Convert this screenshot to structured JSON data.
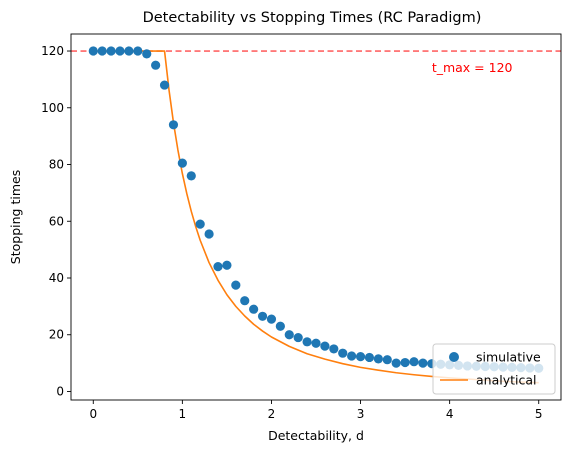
{
  "chart_data": {
    "type": "scatter",
    "title": "Detectability vs Stopping Times (RC Paradigm)",
    "xlabel": "Detectability, d",
    "ylabel": "Stopping times",
    "xlim": [
      -0.25,
      5.25
    ],
    "ylim": [
      -3,
      126
    ],
    "xticks": [
      0,
      1,
      2,
      3,
      4,
      5
    ],
    "yticks": [
      0,
      20,
      40,
      60,
      80,
      100,
      120
    ],
    "grid": false,
    "legend_position": "lower-right",
    "reference_line": {
      "y": 120,
      "label": "t_max = 120",
      "label_x": 3.8,
      "label_y": 114,
      "color": "#ff6666"
    },
    "series": [
      {
        "name": "simulative",
        "type": "scatter",
        "color": "#1f77b4",
        "x": [
          0,
          0.1,
          0.2,
          0.3,
          0.4,
          0.5,
          0.6,
          0.7,
          0.8,
          0.9,
          1.0,
          1.1,
          1.2,
          1.3,
          1.4,
          1.5,
          1.6,
          1.7,
          1.8,
          1.9,
          2.0,
          2.1,
          2.2,
          2.3,
          2.4,
          2.5,
          2.6,
          2.7,
          2.8,
          2.9,
          3.0,
          3.1,
          3.2,
          3.3,
          3.4,
          3.5,
          3.6,
          3.7,
          3.8,
          3.9,
          4.0,
          4.1,
          4.2,
          4.3,
          4.4,
          4.5,
          4.6,
          4.7,
          4.8,
          4.9,
          5.0
        ],
        "y": [
          120,
          120,
          120,
          120,
          120,
          120,
          119,
          115,
          108,
          94,
          80.5,
          76,
          59,
          55.5,
          44,
          44.5,
          37.5,
          32,
          29,
          26.5,
          25.5,
          23,
          20,
          19,
          17.5,
          17,
          16,
          15,
          13.5,
          12.5,
          12.3,
          12,
          11.5,
          11.2,
          10,
          10.2,
          10.5,
          10,
          9.8,
          9.6,
          9.4,
          9.2,
          9,
          8.9,
          8.8,
          8.7,
          8.6,
          8.5,
          8.4,
          8.3,
          8.2
        ]
      },
      {
        "name": "analytical",
        "type": "line",
        "color": "#ff7f0e",
        "x": [
          0,
          0.8,
          0.85,
          0.9,
          0.95,
          1.0,
          1.05,
          1.1,
          1.15,
          1.2,
          1.3,
          1.4,
          1.5,
          1.6,
          1.7,
          1.8,
          1.9,
          2.0,
          2.2,
          2.4,
          2.6,
          2.8,
          3.0,
          3.2,
          3.4,
          3.6,
          3.8,
          4.0,
          4.2,
          4.4,
          4.6,
          4.8,
          5.0
        ],
        "y": [
          120,
          120,
          106.3,
          94.8,
          85.1,
          76.8,
          69.7,
          63.5,
          58.1,
          53.3,
          45.4,
          39.2,
          34.1,
          30.0,
          26.6,
          23.7,
          21.3,
          19.2,
          15.9,
          13.3,
          11.4,
          9.8,
          8.5,
          7.5,
          6.6,
          5.9,
          5.3,
          4.8,
          4.4,
          4.0,
          3.6,
          3.3,
          3.1
        ]
      }
    ]
  }
}
